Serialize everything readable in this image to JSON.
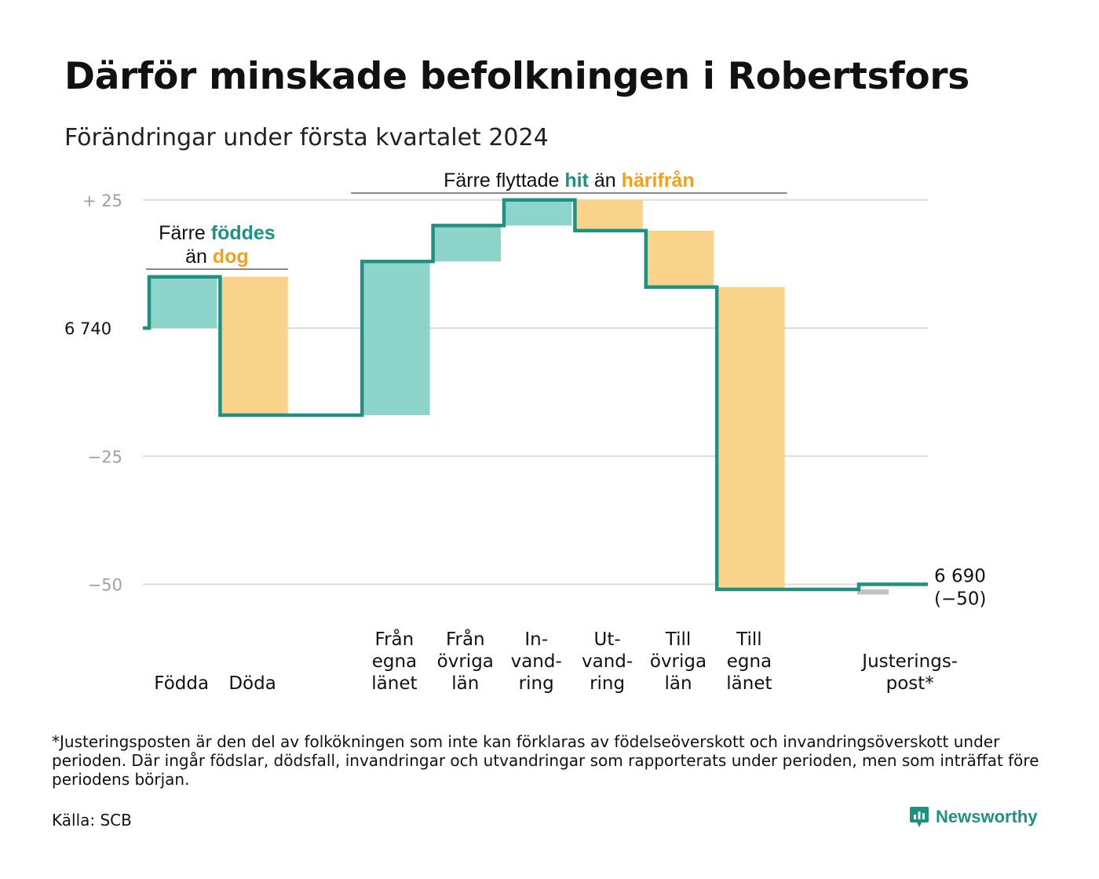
{
  "header": {
    "title": "Därför minskade befolkningen i Robertsfors",
    "subtitle": "Förändringar under första kvartalet 2024"
  },
  "annotations": {
    "births_deaths": {
      "line1": [
        "Färre ",
        "föddes"
      ],
      "line2": [
        "än ",
        "dog"
      ]
    },
    "migration": [
      "Färre flyttade ",
      "hit",
      " än ",
      "härifrån"
    ]
  },
  "end_label": {
    "value": "6 690",
    "change": "(−50)"
  },
  "footnote": "*Justeringsposten är den del av folkökningen som inte kan förklaras av födelseöverskott och invandringsöverskott under perioden. Där ingår födslar, dödsfall, invandringar och utvandringar som rapporterats under perioden, men som inträffat före periodens början.",
  "source": "Källa: SCB",
  "brand": {
    "name": "Newsworthy",
    "icon": "newsworthy-logo-icon"
  },
  "colors": {
    "increase": "#8dd5cb",
    "decrease": "#fad38b",
    "line": "#1f9182",
    "accent_orange": "#f3a01d",
    "adjustment": "#c2c2c2",
    "grid": "#dcdcdc",
    "tick_gray": "#a0a0a0"
  },
  "chart_data": {
    "type": "waterfall",
    "start_value": 6740,
    "end_value": 6690,
    "total_change": -50,
    "y_axis": {
      "ticks": [
        {
          "value": 25,
          "label": "+  25"
        },
        {
          "value": 0,
          "label": "6  740"
        },
        {
          "value": -25,
          "label": "−25"
        },
        {
          "value": -50,
          "label": "−50"
        }
      ],
      "range": [
        -52,
        27
      ],
      "unit": "change from 6 740"
    },
    "categories": [
      {
        "label": [
          "Födda"
        ],
        "value": 10,
        "kind": "increase"
      },
      {
        "label": [
          "Döda"
        ],
        "value": -27,
        "kind": "decrease"
      },
      {
        "label": [],
        "value": 0,
        "kind": "gap"
      },
      {
        "label": [
          "Från",
          "egna",
          "länet"
        ],
        "value": 30,
        "kind": "increase"
      },
      {
        "label": [
          "Från",
          "övriga",
          "län"
        ],
        "value": 7,
        "kind": "increase"
      },
      {
        "label": [
          "In-",
          "vand-",
          "ring"
        ],
        "value": 5,
        "kind": "increase"
      },
      {
        "label": [
          "Ut-",
          "vand-",
          "ring"
        ],
        "value": -6,
        "kind": "decrease"
      },
      {
        "label": [
          "Till",
          "övriga",
          "län"
        ],
        "value": -11,
        "kind": "decrease"
      },
      {
        "label": [
          "Till",
          "egna",
          "länet"
        ],
        "value": -59,
        "kind": "decrease"
      },
      {
        "label": [],
        "value": 0,
        "kind": "gap"
      },
      {
        "label": [
          "Justerings-",
          "post*"
        ],
        "value": 1,
        "kind": "adjustment"
      }
    ]
  }
}
